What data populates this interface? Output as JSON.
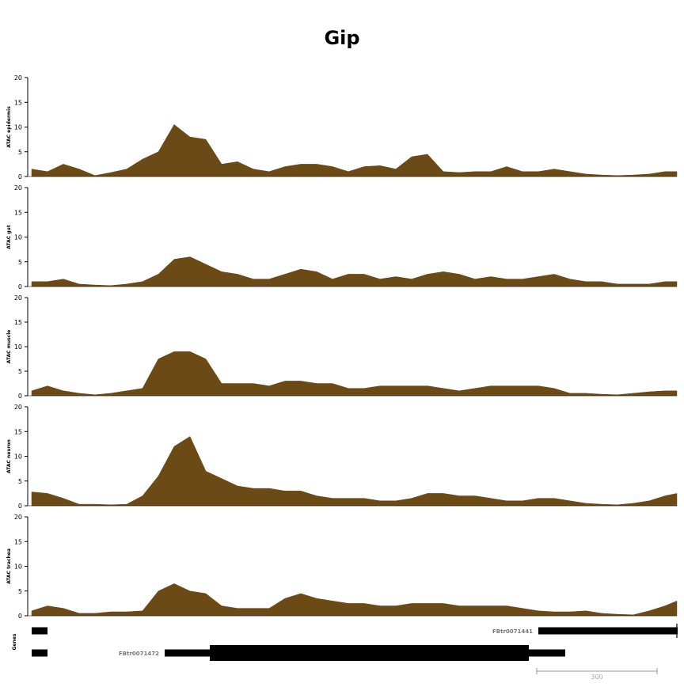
{
  "chart_data": {
    "type": "area",
    "title": "Gip",
    "ylim": [
      0,
      20
    ],
    "yticks": [
      0,
      5,
      10,
      15,
      20
    ],
    "fill_color": "#6b4a16",
    "grid": false,
    "x": [
      0,
      20,
      40,
      60,
      80,
      100,
      120,
      140,
      160,
      180,
      200,
      220,
      240,
      260,
      280,
      300,
      320,
      340,
      360,
      380,
      400,
      420,
      440,
      460,
      480,
      500,
      520,
      540,
      560,
      580,
      600,
      620,
      640,
      660,
      680,
      700,
      720,
      740,
      760,
      780,
      800,
      815
    ],
    "series": [
      {
        "name": "ATAC epidermis",
        "values": [
          1.5,
          1.0,
          2.5,
          1.5,
          0.2,
          0.8,
          1.5,
          3.5,
          5.0,
          10.5,
          8.0,
          7.5,
          2.5,
          3.0,
          1.5,
          1.0,
          2.0,
          2.5,
          2.5,
          2.0,
          1.0,
          2.0,
          2.2,
          1.5,
          4.0,
          4.5,
          1.0,
          0.8,
          1.0,
          1.0,
          2.0,
          1.0,
          1.0,
          1.5,
          1.0,
          0.5,
          0.3,
          0.2,
          0.3,
          0.5,
          1.0,
          1.0
        ]
      },
      {
        "name": "ATAC gut",
        "values": [
          1.0,
          1.0,
          1.5,
          0.5,
          0.3,
          0.2,
          0.5,
          1.0,
          2.5,
          5.5,
          6.0,
          4.5,
          3.0,
          2.5,
          1.5,
          1.5,
          2.5,
          3.5,
          3.0,
          1.5,
          2.5,
          2.5,
          1.5,
          2.0,
          1.5,
          2.5,
          3.0,
          2.5,
          1.5,
          2.0,
          1.5,
          1.5,
          2.0,
          2.5,
          1.5,
          1.0,
          1.0,
          0.5,
          0.5,
          0.5,
          1.0,
          1.0
        ]
      },
      {
        "name": "ATAC muscle",
        "values": [
          1.0,
          2.0,
          1.0,
          0.5,
          0.2,
          0.5,
          1.0,
          1.5,
          7.5,
          9.0,
          9.0,
          7.5,
          2.5,
          2.5,
          2.5,
          2.0,
          3.0,
          3.0,
          2.5,
          2.5,
          1.5,
          1.5,
          2.0,
          2.0,
          2.0,
          2.0,
          1.5,
          1.0,
          1.5,
          2.0,
          2.0,
          2.0,
          2.0,
          1.5,
          0.5,
          0.5,
          0.3,
          0.2,
          0.5,
          0.8,
          1.0,
          1.0
        ]
      },
      {
        "name": "ATAC neuron",
        "values": [
          2.8,
          2.5,
          1.5,
          0.3,
          0.3,
          0.2,
          0.3,
          2.0,
          6.0,
          12.0,
          14.0,
          7.0,
          5.5,
          4.0,
          3.5,
          3.5,
          3.0,
          3.0,
          2.0,
          1.5,
          1.5,
          1.5,
          1.0,
          1.0,
          1.5,
          2.5,
          2.5,
          2.0,
          2.0,
          1.5,
          1.0,
          1.0,
          1.5,
          1.5,
          1.0,
          0.5,
          0.3,
          0.2,
          0.5,
          1.0,
          2.0,
          2.5
        ]
      },
      {
        "name": "ATAC trachea",
        "values": [
          1.0,
          2.0,
          1.5,
          0.5,
          0.5,
          0.8,
          0.8,
          1.0,
          5.0,
          6.5,
          5.0,
          4.5,
          2.0,
          1.5,
          1.5,
          1.5,
          3.5,
          4.5,
          3.5,
          3.0,
          2.5,
          2.5,
          2.0,
          2.0,
          2.5,
          2.5,
          2.5,
          2.0,
          2.0,
          2.0,
          2.0,
          1.5,
          1.0,
          0.8,
          0.8,
          1.0,
          0.5,
          0.3,
          0.2,
          1.0,
          2.0,
          3.0
        ]
      }
    ],
    "genes": {
      "label": "Genes",
      "transcripts": [
        {
          "name": "FBtr0071441",
          "exons": [
            {
              "start": 0,
              "end": 20,
              "thick": false
            },
            {
              "start": 640,
              "end": 816,
              "thick": false
            }
          ]
        },
        {
          "name": "FBtr0071472",
          "exons": [
            {
              "start": 0,
              "end": 20,
              "thick": false
            },
            {
              "start": 168,
              "end": 225,
              "thick": false
            },
            {
              "start": 225,
              "end": 628,
              "thick": true
            },
            {
              "start": 628,
              "end": 674,
              "thick": false
            }
          ]
        }
      ]
    },
    "scale_bar": {
      "label": "300",
      "length": 300
    }
  }
}
